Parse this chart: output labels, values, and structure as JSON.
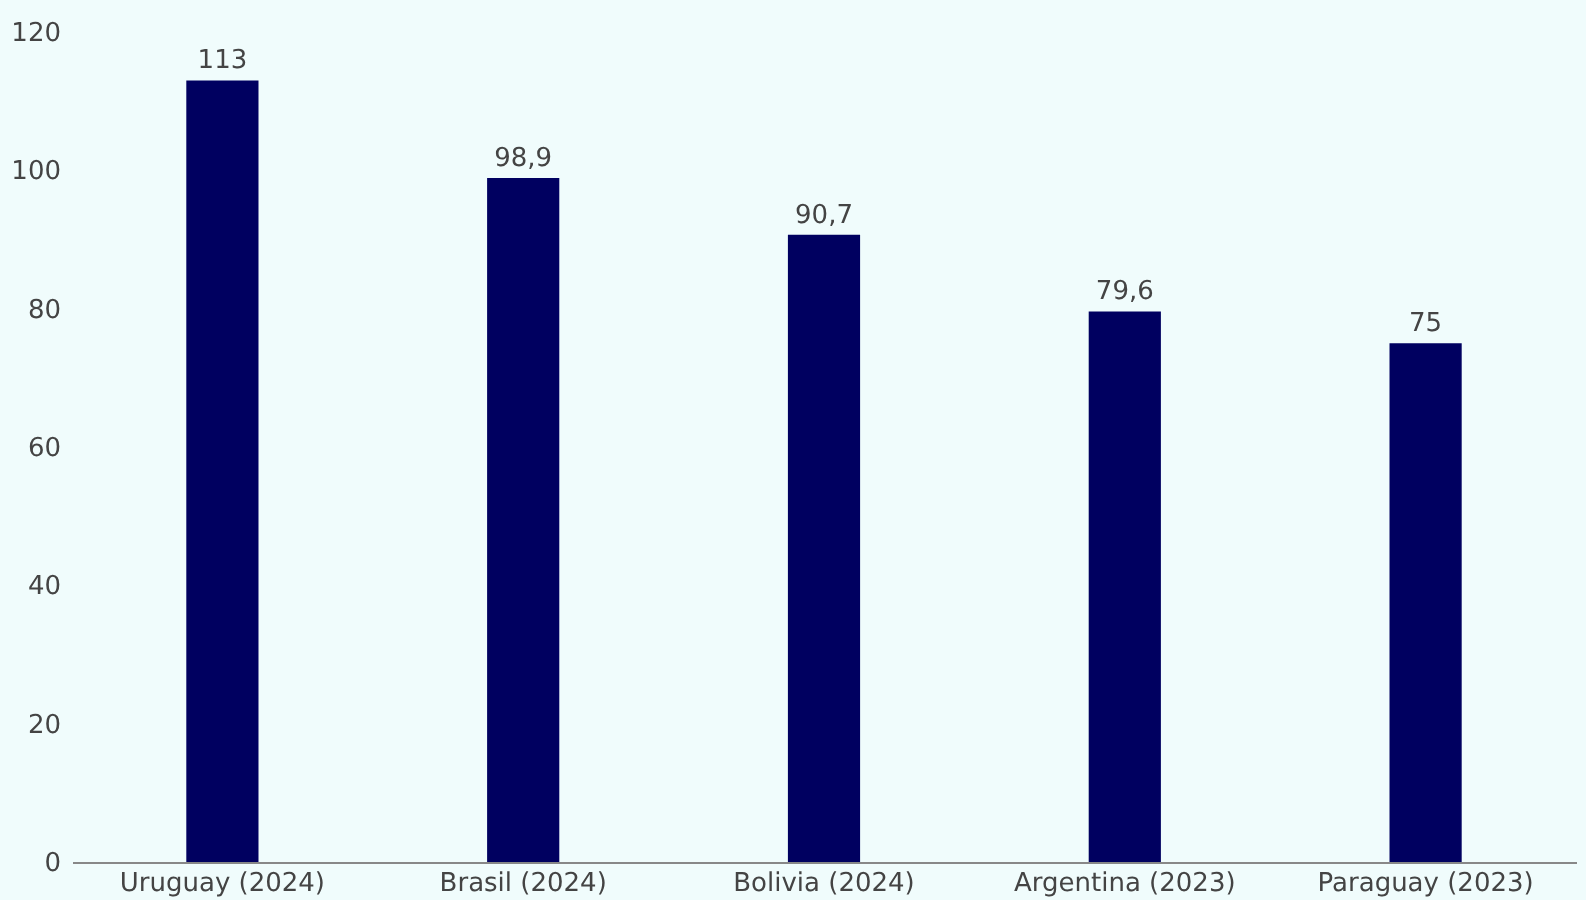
{
  "chart_data": {
    "type": "bar",
    "categories": [
      "Uruguay (2024)",
      "Brasil (2024)",
      "Bolivia (2024)",
      "Argentina (2023)",
      "Paraguay (2023)"
    ],
    "values": [
      113,
      98.9,
      90.7,
      79.6,
      75
    ],
    "value_labels": [
      "113",
      "98,9",
      "90,7",
      "79,6",
      "75"
    ],
    "color": "#000060",
    "ylim": [
      0,
      120
    ],
    "yticks": [
      0,
      20,
      40,
      60,
      80,
      100,
      120
    ],
    "grid": false
  }
}
